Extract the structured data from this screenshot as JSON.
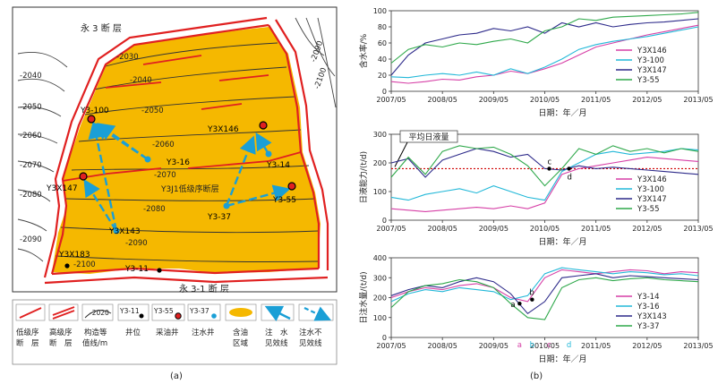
{
  "colors": {
    "oil": "#f5b800",
    "fault_low": "#e02020",
    "fault_high": "#e02020",
    "arrow": "#1a9fd6",
    "contour": "#333333",
    "dotted": "#d00000",
    "series": {
      "pink": "#d63fa6",
      "cyan": "#22b8d8",
      "navy": "#2d2a8a",
      "green": "#2ea84a"
    }
  },
  "map": {
    "faults": {
      "top": "永 3 断 层",
      "bottom": "永 3-1 断 层",
      "inner": "Y3J1低级序断层"
    },
    "contours": [
      "-2030",
      "-2040",
      "-2050",
      "-2060",
      "-2070",
      "-2080",
      "-2090",
      "-2100",
      "-2040",
      "-2050",
      "-2060",
      "-2070",
      "-2080",
      "-2090",
      "-2090",
      "-2100"
    ],
    "wells": {
      "oil": [
        "Y3-100",
        "Y3X146",
        "Y3X147",
        "Y3-55"
      ],
      "inject": [
        "Y3-16",
        "Y3-14",
        "Y3X143",
        "Y3-37"
      ],
      "plain": [
        "Y3X183",
        "Y3-11"
      ]
    },
    "legend": [
      {
        "label1": "低级序",
        "label2": "断　层"
      },
      {
        "label1": "高级序",
        "label2": "断　层"
      },
      {
        "label1": "构造等",
        "label2": "值线/m",
        "sample": "-2020"
      },
      {
        "label1": "井位",
        "sample": "Y3-11"
      },
      {
        "label1": "采油井",
        "sample": "Y3-55"
      },
      {
        "label1": "注水井",
        "sample": "Y3-37"
      },
      {
        "label1": "含油",
        "label2": "区域"
      },
      {
        "label1": "注　水",
        "label2": "见效线"
      },
      {
        "label1": "注水不",
        "label2": "见效线"
      }
    ],
    "caption": "(a)"
  },
  "charts": {
    "caption": "(b)",
    "x_ticks": [
      "2007/05",
      "2008/05",
      "2009/05",
      "2010/05",
      "2011/05",
      "2012/05",
      "2013/05"
    ],
    "xlabel": "日期：年／月"
  },
  "chart_data": [
    {
      "type": "line",
      "ylabel": "含水率/%",
      "xlabel": "日期：年／月",
      "ylim": [
        0,
        100
      ],
      "y_ticks": [
        "0",
        "20",
        "40",
        "60",
        "80",
        "100"
      ],
      "x": [
        "2007/05",
        "2007/09",
        "2008/01",
        "2008/05",
        "2008/09",
        "2009/01",
        "2009/05",
        "2009/09",
        "2010/01",
        "2010/05",
        "2010/09",
        "2011/01",
        "2011/05",
        "2011/09",
        "2012/01",
        "2012/05",
        "2012/09",
        "2013/01",
        "2013/05"
      ],
      "series": [
        {
          "name": "Y3X146",
          "values": [
            12,
            10,
            12,
            15,
            14,
            18,
            20,
            25,
            22,
            28,
            35,
            45,
            55,
            60,
            65,
            70,
            74,
            78,
            82
          ]
        },
        {
          "name": "Y3-100",
          "values": [
            18,
            17,
            20,
            22,
            20,
            24,
            20,
            28,
            22,
            30,
            40,
            52,
            58,
            62,
            65,
            68,
            72,
            76,
            80
          ]
        },
        {
          "name": "Y3X147",
          "values": [
            20,
            45,
            60,
            65,
            70,
            72,
            78,
            75,
            80,
            72,
            85,
            80,
            85,
            80,
            83,
            85,
            86,
            88,
            90
          ]
        },
        {
          "name": "Y3-55",
          "values": [
            35,
            52,
            58,
            55,
            60,
            58,
            62,
            65,
            60,
            75,
            80,
            90,
            88,
            92,
            93,
            94,
            95,
            96,
            98
          ]
        }
      ]
    },
    {
      "type": "line",
      "ylabel": "日液能力/(t/d)",
      "xlabel": "日期：年／月",
      "ylim": [
        0,
        300
      ],
      "y_ticks": [
        "0",
        "100",
        "200",
        "300"
      ],
      "annotation": "平均日液量",
      "avg_value": 180,
      "markers": [
        "c",
        "d"
      ],
      "x": [
        "2007/05",
        "2007/09",
        "2008/01",
        "2008/05",
        "2008/09",
        "2009/01",
        "2009/05",
        "2009/09",
        "2010/01",
        "2010/05",
        "2010/09",
        "2011/01",
        "2011/05",
        "2011/09",
        "2012/01",
        "2012/05",
        "2012/09",
        "2013/01",
        "2013/05"
      ],
      "series": [
        {
          "name": "Y3X146",
          "values": [
            40,
            35,
            30,
            35,
            40,
            45,
            40,
            50,
            40,
            60,
            160,
            180,
            190,
            200,
            210,
            220,
            215,
            210,
            205
          ]
        },
        {
          "name": "Y3-100",
          "values": [
            80,
            70,
            90,
            100,
            110,
            95,
            120,
            100,
            80,
            70,
            170,
            200,
            230,
            240,
            230,
            235,
            240,
            250,
            245
          ]
        },
        {
          "name": "Y3X147",
          "values": [
            200,
            215,
            150,
            210,
            230,
            250,
            240,
            220,
            230,
            180,
            175,
            190,
            180,
            185,
            180,
            175,
            170,
            165,
            160
          ]
        },
        {
          "name": "Y3-55",
          "values": [
            150,
            220,
            160,
            240,
            260,
            250,
            255,
            230,
            190,
            120,
            180,
            250,
            230,
            260,
            240,
            250,
            235,
            250,
            240
          ]
        }
      ]
    },
    {
      "type": "line",
      "ylabel": "日注水量/(t/d)",
      "xlabel": "日期：年／月",
      "ylim": [
        0,
        400
      ],
      "y_ticks": [
        "0",
        "100",
        "200",
        "300",
        "400"
      ],
      "markers": [
        "a",
        "b"
      ],
      "x_markers": [
        "a",
        "b",
        "c",
        "d"
      ],
      "x": [
        "2007/05",
        "2007/09",
        "2008/01",
        "2008/05",
        "2008/09",
        "2009/01",
        "2009/05",
        "2009/09",
        "2010/01",
        "2010/05",
        "2010/09",
        "2011/01",
        "2011/05",
        "2011/09",
        "2012/01",
        "2012/05",
        "2012/09",
        "2013/01",
        "2013/05"
      ],
      "series": [
        {
          "name": "Y3-14",
          "values": [
            200,
            230,
            250,
            240,
            260,
            270,
            250,
            200,
            180,
            300,
            340,
            330,
            320,
            330,
            340,
            335,
            320,
            330,
            325
          ]
        },
        {
          "name": "Y3-16",
          "values": [
            180,
            220,
            240,
            230,
            250,
            240,
            230,
            190,
            210,
            320,
            350,
            340,
            330,
            320,
            330,
            325,
            315,
            320,
            310
          ]
        },
        {
          "name": "Y3X143",
          "values": [
            210,
            240,
            260,
            250,
            280,
            300,
            280,
            220,
            120,
            180,
            300,
            310,
            320,
            300,
            310,
            305,
            300,
            295,
            290
          ]
        },
        {
          "name": "Y3-37",
          "values": [
            150,
            230,
            260,
            270,
            290,
            280,
            250,
            170,
            100,
            90,
            250,
            290,
            300,
            285,
            295,
            300,
            290,
            285,
            280
          ]
        }
      ]
    }
  ]
}
